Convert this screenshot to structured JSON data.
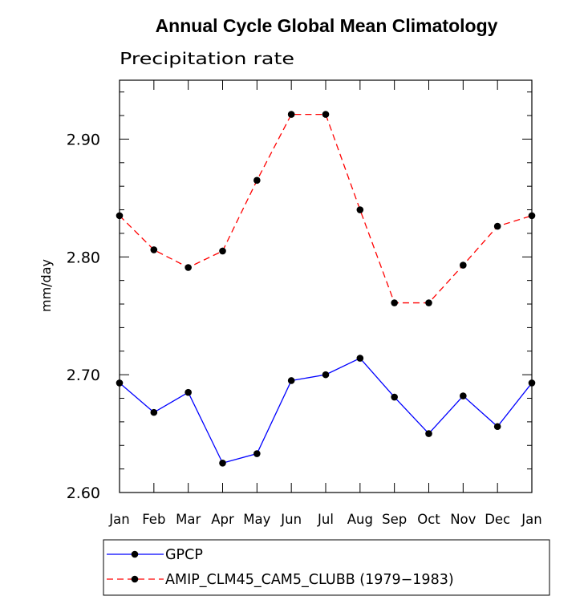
{
  "chart_data": {
    "type": "line",
    "title": "Annual Cycle Global Mean Climatology",
    "subtitle": "Precipitation rate",
    "ylabel": "mm/day",
    "xlabel": "",
    "categories": [
      "Jan",
      "Feb",
      "Mar",
      "Apr",
      "May",
      "Jun",
      "Jul",
      "Aug",
      "Sep",
      "Oct",
      "Nov",
      "Dec",
      "Jan"
    ],
    "ylim": [
      2.6,
      2.95
    ],
    "yticks": [
      2.6,
      2.7,
      2.8,
      2.9
    ],
    "ytick_labels": [
      "2.60",
      "2.70",
      "2.80",
      "2.90"
    ],
    "series": [
      {
        "name": "GPCP",
        "color": "#0000ff",
        "dash": "solid",
        "marker": "filled-circle",
        "values": [
          2.693,
          2.668,
          2.685,
          2.625,
          2.633,
          2.695,
          2.7,
          2.714,
          2.681,
          2.65,
          2.682,
          2.656,
          2.693
        ]
      },
      {
        "name": "AMIP_CLM45_CAM5_CLUBB (1979−1983)",
        "color": "#ff0000",
        "dash": "dashed",
        "marker": "filled-circle",
        "values": [
          2.835,
          2.806,
          2.791,
          2.805,
          2.865,
          2.921,
          2.921,
          2.84,
          2.761,
          2.761,
          2.793,
          2.826,
          2.835
        ]
      }
    ],
    "grid": false,
    "legend_position": "bottom"
  }
}
